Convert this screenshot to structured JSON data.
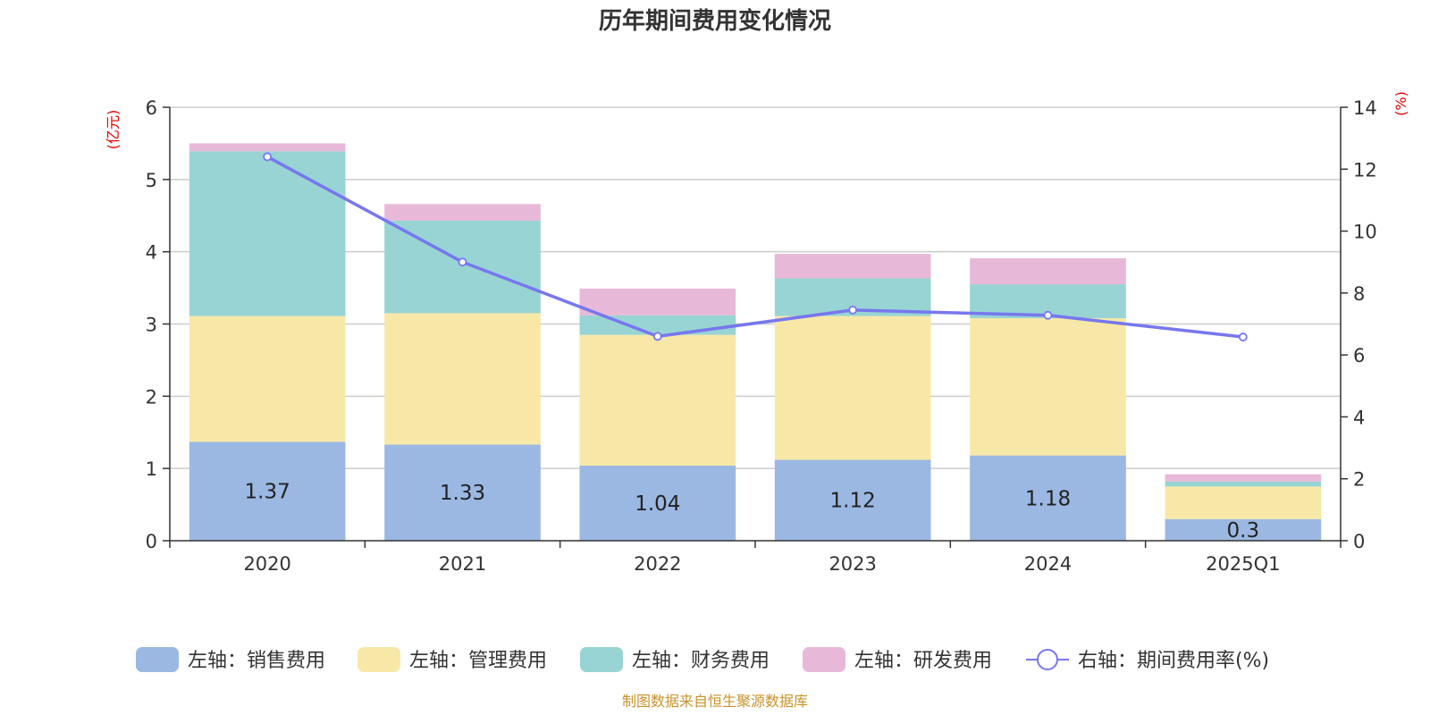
{
  "title": "历年期间费用变化情况",
  "source": "制图数据来自恒生聚源数据库",
  "chart_data": {
    "type": "bar",
    "stacked": true,
    "categories": [
      "2020",
      "2021",
      "2022",
      "2023",
      "2024",
      "2025Q1"
    ],
    "left_axis": {
      "unit": "(亿元)",
      "ylim": [
        0,
        6
      ],
      "ticks": [
        "0",
        "1",
        "2",
        "3",
        "4",
        "5",
        "6"
      ]
    },
    "right_axis": {
      "unit": "(%)",
      "ylim": [
        0,
        14
      ],
      "ticks": [
        "0",
        "2",
        "4",
        "6",
        "8",
        "10",
        "12",
        "14"
      ]
    },
    "series": [
      {
        "name": "左轴：销售费用",
        "axis": "left",
        "color": "#9bb8e2",
        "values": [
          1.37,
          1.33,
          1.04,
          1.12,
          1.18,
          0.3
        ],
        "data_labels": [
          "1.37",
          "1.33",
          "1.04",
          "1.12",
          "1.18",
          "0.3"
        ]
      },
      {
        "name": "左轴：管理费用",
        "axis": "left",
        "color": "#f8e8a8",
        "values": [
          1.74,
          1.82,
          1.81,
          1.99,
          1.9,
          0.45
        ]
      },
      {
        "name": "左轴：财务费用",
        "axis": "left",
        "color": "#98d4d4",
        "values": [
          2.28,
          1.28,
          0.27,
          0.52,
          0.47,
          0.07
        ]
      },
      {
        "name": "左轴：研发费用",
        "axis": "left",
        "color": "#e8b8d8",
        "values": [
          0.11,
          0.23,
          0.37,
          0.34,
          0.36,
          0.1
        ]
      },
      {
        "name": "右轴：期间费用率(%)",
        "axis": "right",
        "type": "line",
        "color": "#7777ee",
        "values": [
          12.4,
          9.0,
          6.6,
          7.45,
          7.28,
          6.58
        ]
      }
    ],
    "grid": true,
    "legend_position": "bottom"
  }
}
